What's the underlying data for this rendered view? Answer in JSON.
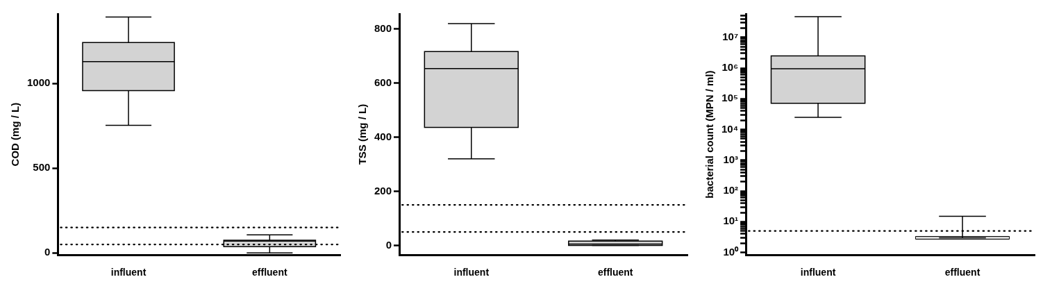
{
  "chart_data": [
    {
      "type": "box",
      "categories": [
        "influent",
        "effluent"
      ],
      "ylabel": "COD (mg / L)",
      "ylim": [
        -12,
        1410
      ],
      "yticks": [
        0,
        500,
        1000
      ],
      "series": [
        {
          "color": "#d3d3d3",
          "boxes": [
            {
              "low": 753,
              "q1": 957,
              "median": 1128,
              "q3": 1241,
              "high": 1392
            },
            {
              "low": 0,
              "q1": 37,
              "median": 70,
              "q3": 75,
              "high": 107
            }
          ]
        }
      ],
      "ref_lines": [
        {
          "axis": "y",
          "value": 150,
          "line_style": "dotted"
        },
        {
          "axis": "y",
          "value": 50,
          "line_style": "dotted"
        }
      ]
    },
    {
      "type": "box",
      "categories": [
        "influent",
        "effluent"
      ],
      "ylabel": "TSS (mg / L)",
      "ylim": [
        -35,
        855
      ],
      "yticks": [
        0,
        200,
        400,
        600,
        800
      ],
      "series": [
        {
          "color": "#d3d3d3",
          "boxes": [
            {
              "low": 320,
              "q1": 436,
              "median": 653,
              "q3": 716,
              "high": 819
            },
            {
              "low": 0,
              "q1": 0,
              "median": 5,
              "q3": 16,
              "high": 20
            }
          ]
        }
      ],
      "ref_lines": [
        {
          "axis": "y",
          "value": 150,
          "line_style": "dotted"
        },
        {
          "axis": "y",
          "value": 50,
          "line_style": "dotted"
        }
      ]
    },
    {
      "type": "box",
      "categories": [
        "influent",
        "effluent"
      ],
      "ylabel": "bacterial count (MPN / ml)",
      "log": "y",
      "ylim": [
        0.83,
        58000000
      ],
      "yticks": [
        {
          "value": 1,
          "label": "10⁰"
        },
        {
          "value": 2,
          "label": null
        },
        {
          "value": 3,
          "label": null
        },
        {
          "value": 4,
          "label": null
        },
        {
          "value": 5,
          "label": null
        },
        {
          "value": 6,
          "label": null
        },
        {
          "value": 7,
          "label": null
        },
        {
          "value": 8,
          "label": null
        },
        {
          "value": 9,
          "label": null
        },
        {
          "value": 10,
          "label": "10¹"
        },
        {
          "value": 20,
          "label": null
        },
        {
          "value": 30,
          "label": null
        },
        {
          "value": 40,
          "label": null
        },
        {
          "value": 50,
          "label": null
        },
        {
          "value": 60,
          "label": null
        },
        {
          "value": 70,
          "label": null
        },
        {
          "value": 80,
          "label": null
        },
        {
          "value": 90,
          "label": null
        },
        {
          "value": 100,
          "label": "10²"
        },
        {
          "value": 200,
          "label": null
        },
        {
          "value": 300,
          "label": null
        },
        {
          "value": 400,
          "label": null
        },
        {
          "value": 500,
          "label": null
        },
        {
          "value": 600,
          "label": null
        },
        {
          "value": 700,
          "label": null
        },
        {
          "value": 800,
          "label": null
        },
        {
          "value": 900,
          "label": null
        },
        {
          "value": 1000,
          "label": "10³"
        },
        {
          "value": 2000,
          "label": null
        },
        {
          "value": 3000,
          "label": null
        },
        {
          "value": 4000,
          "label": null
        },
        {
          "value": 5000,
          "label": null
        },
        {
          "value": 6000,
          "label": null
        },
        {
          "value": 7000,
          "label": null
        },
        {
          "value": 8000,
          "label": null
        },
        {
          "value": 9000,
          "label": null
        },
        {
          "value": 10000,
          "label": "10⁴"
        },
        {
          "value": 20000,
          "label": null
        },
        {
          "value": 30000,
          "label": null
        },
        {
          "value": 40000,
          "label": null
        },
        {
          "value": 50000,
          "label": null
        },
        {
          "value": 60000,
          "label": null
        },
        {
          "value": 70000,
          "label": null
        },
        {
          "value": 80000,
          "label": null
        },
        {
          "value": 90000,
          "label": null
        },
        {
          "value": 100000,
          "label": "10⁵"
        },
        {
          "value": 200000,
          "label": null
        },
        {
          "value": 300000,
          "label": null
        },
        {
          "value": 400000,
          "label": null
        },
        {
          "value": 500000,
          "label": null
        },
        {
          "value": 600000,
          "label": null
        },
        {
          "value": 700000,
          "label": null
        },
        {
          "value": 800000,
          "label": null
        },
        {
          "value": 900000,
          "label": null
        },
        {
          "value": 1000000,
          "label": "10⁶"
        },
        {
          "value": 2000000,
          "label": null
        },
        {
          "value": 3000000,
          "label": null
        },
        {
          "value": 4000000,
          "label": null
        },
        {
          "value": 5000000,
          "label": null
        },
        {
          "value": 6000000,
          "label": null
        },
        {
          "value": 7000000,
          "label": null
        },
        {
          "value": 8000000,
          "label": null
        },
        {
          "value": 9000000,
          "label": null
        },
        {
          "value": 10000000,
          "label": "10⁷"
        },
        {
          "value": 20000000,
          "label": null
        },
        {
          "value": 30000000,
          "label": null
        },
        {
          "value": 40000000,
          "label": null
        },
        {
          "value": 50000000,
          "label": null
        }
      ],
      "series": [
        {
          "color": "#d3d3d3",
          "boxes": [
            {
              "low": 25000,
              "q1": 72000,
              "median": 950000,
              "q3": 2500000,
              "high": 47000000
            },
            {
              "low": 3,
              "q1": 3,
              "median": 3,
              "q3": 3,
              "high": 15
            }
          ]
        }
      ],
      "ref_lines": [
        {
          "axis": "y",
          "value": 5,
          "line_style": "dotted"
        }
      ]
    }
  ]
}
